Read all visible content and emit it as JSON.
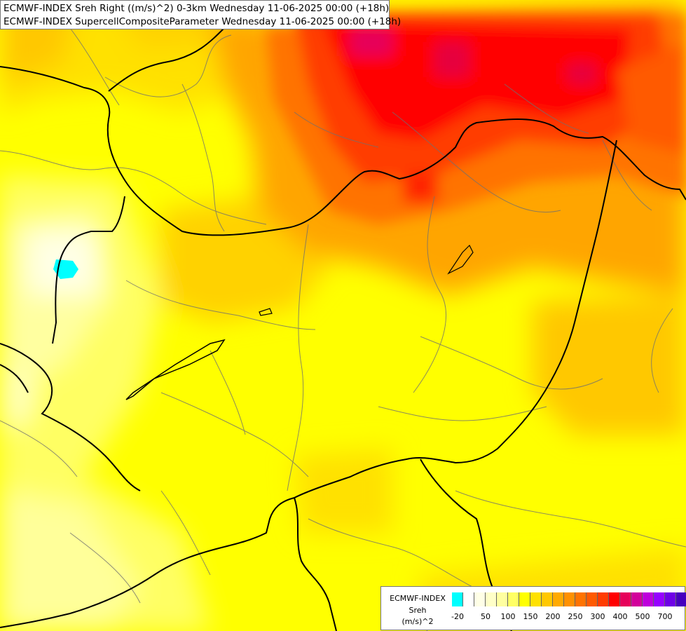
{
  "title": {
    "line1": "ECMWF-INDEX Sreh Right ((m/s)^2) 0-3km Wednesday 11-06-2025 00:00 (+18h)",
    "line2": "ECMWF-INDEX SupercellCompositeParameter Wednesday 11-06-2025 00:00 (+18h)"
  },
  "legend": {
    "model": "ECMWF-INDEX",
    "variable": "Sreh",
    "unit": "(m/s)^2",
    "colors": [
      "#00ffff",
      "#ffffff",
      "#ffffe6",
      "#ffffc8",
      "#ffffa0",
      "#ffff64",
      "#ffff00",
      "#ffe100",
      "#ffc800",
      "#ffaa00",
      "#ff9100",
      "#ff7300",
      "#ff5a00",
      "#ff3c00",
      "#ff0000",
      "#e6005a",
      "#d2009b",
      "#be00dc",
      "#9600ff",
      "#6e00e6",
      "#4600be",
      "#1e0096"
    ],
    "ticks": [
      {
        "label": "-20",
        "index": 0.5
      },
      {
        "label": "50",
        "index": 3
      },
      {
        "label": "100",
        "index": 5
      },
      {
        "label": "150",
        "index": 7
      },
      {
        "label": "200",
        "index": 9
      },
      {
        "label": "250",
        "index": 11
      },
      {
        "label": "300",
        "index": 13
      },
      {
        "label": "400",
        "index": 15
      },
      {
        "label": "500",
        "index": 17
      },
      {
        "label": "700",
        "index": 19
      }
    ]
  }
}
